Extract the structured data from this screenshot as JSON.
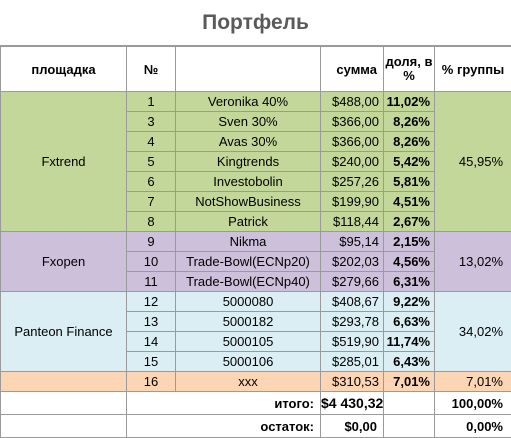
{
  "title": "Портфель",
  "headers": {
    "platform": "площадка",
    "number": "№",
    "name": "",
    "amount": "сумма",
    "share": "доля, в %",
    "group_pct": "% группы"
  },
  "groups": [
    {
      "name": "Fxtrend",
      "group_pct": "45,95%",
      "rows": [
        {
          "no": "1",
          "name": "Veronika 40%",
          "amount": "$488,00",
          "share": "11,02%"
        },
        {
          "no": "3",
          "name": "Sven 30%",
          "amount": "$366,00",
          "share": "8,26%"
        },
        {
          "no": "4",
          "name": "Avas 30%",
          "amount": "$366,00",
          "share": "8,26%"
        },
        {
          "no": "5",
          "name": "Kingtrends",
          "amount": "$240,00",
          "share": "5,42%"
        },
        {
          "no": "6",
          "name": "Investobolin",
          "amount": "$257,26",
          "share": "5,81%"
        },
        {
          "no": "7",
          "name": "NotShowBusiness",
          "amount": "$199,90",
          "share": "4,51%"
        },
        {
          "no": "8",
          "name": "Patrick",
          "amount": "$118,44",
          "share": "2,67%"
        }
      ]
    },
    {
      "name": "Fxopen",
      "group_pct": "13,02%",
      "rows": [
        {
          "no": "9",
          "name": "Nikma",
          "amount": "$95,14",
          "share": "2,15%"
        },
        {
          "no": "10",
          "name": "Trade-Bowl(ECNp20)",
          "amount": "$202,03",
          "share": "4,56%"
        },
        {
          "no": "11",
          "name": "Trade-Bowl(ECNp40)",
          "amount": "$279,66",
          "share": "6,31%"
        }
      ]
    },
    {
      "name": "Panteon Finance",
      "group_pct": "34,02%",
      "rows": [
        {
          "no": "12",
          "name": "5000080",
          "amount": "$408,67",
          "share": "9,22%"
        },
        {
          "no": "13",
          "name": "5000182",
          "amount": "$293,78",
          "share": "6,63%"
        },
        {
          "no": "14",
          "name": "5000105",
          "amount": "$519,90",
          "share": "11,74%"
        },
        {
          "no": "15",
          "name": "5000106",
          "amount": "$285,01",
          "share": "6,43%"
        }
      ]
    },
    {
      "name": "",
      "group_pct": "7,01%",
      "rows": [
        {
          "no": "16",
          "name": "xxx",
          "amount": "$310,53",
          "share": "7,01%"
        }
      ]
    }
  ],
  "totals": {
    "total_label": "итого:",
    "total_amount": "$4 430,32",
    "total_pct": "100,00%",
    "rest_label": "остаток:",
    "rest_amount": "$0,00",
    "rest_pct": "0,00%"
  },
  "colors": {
    "fxtrend": "#c4d79b",
    "fxopen": "#ccc0da",
    "panteon": "#daeef3",
    "other": "#fcd5b4"
  }
}
